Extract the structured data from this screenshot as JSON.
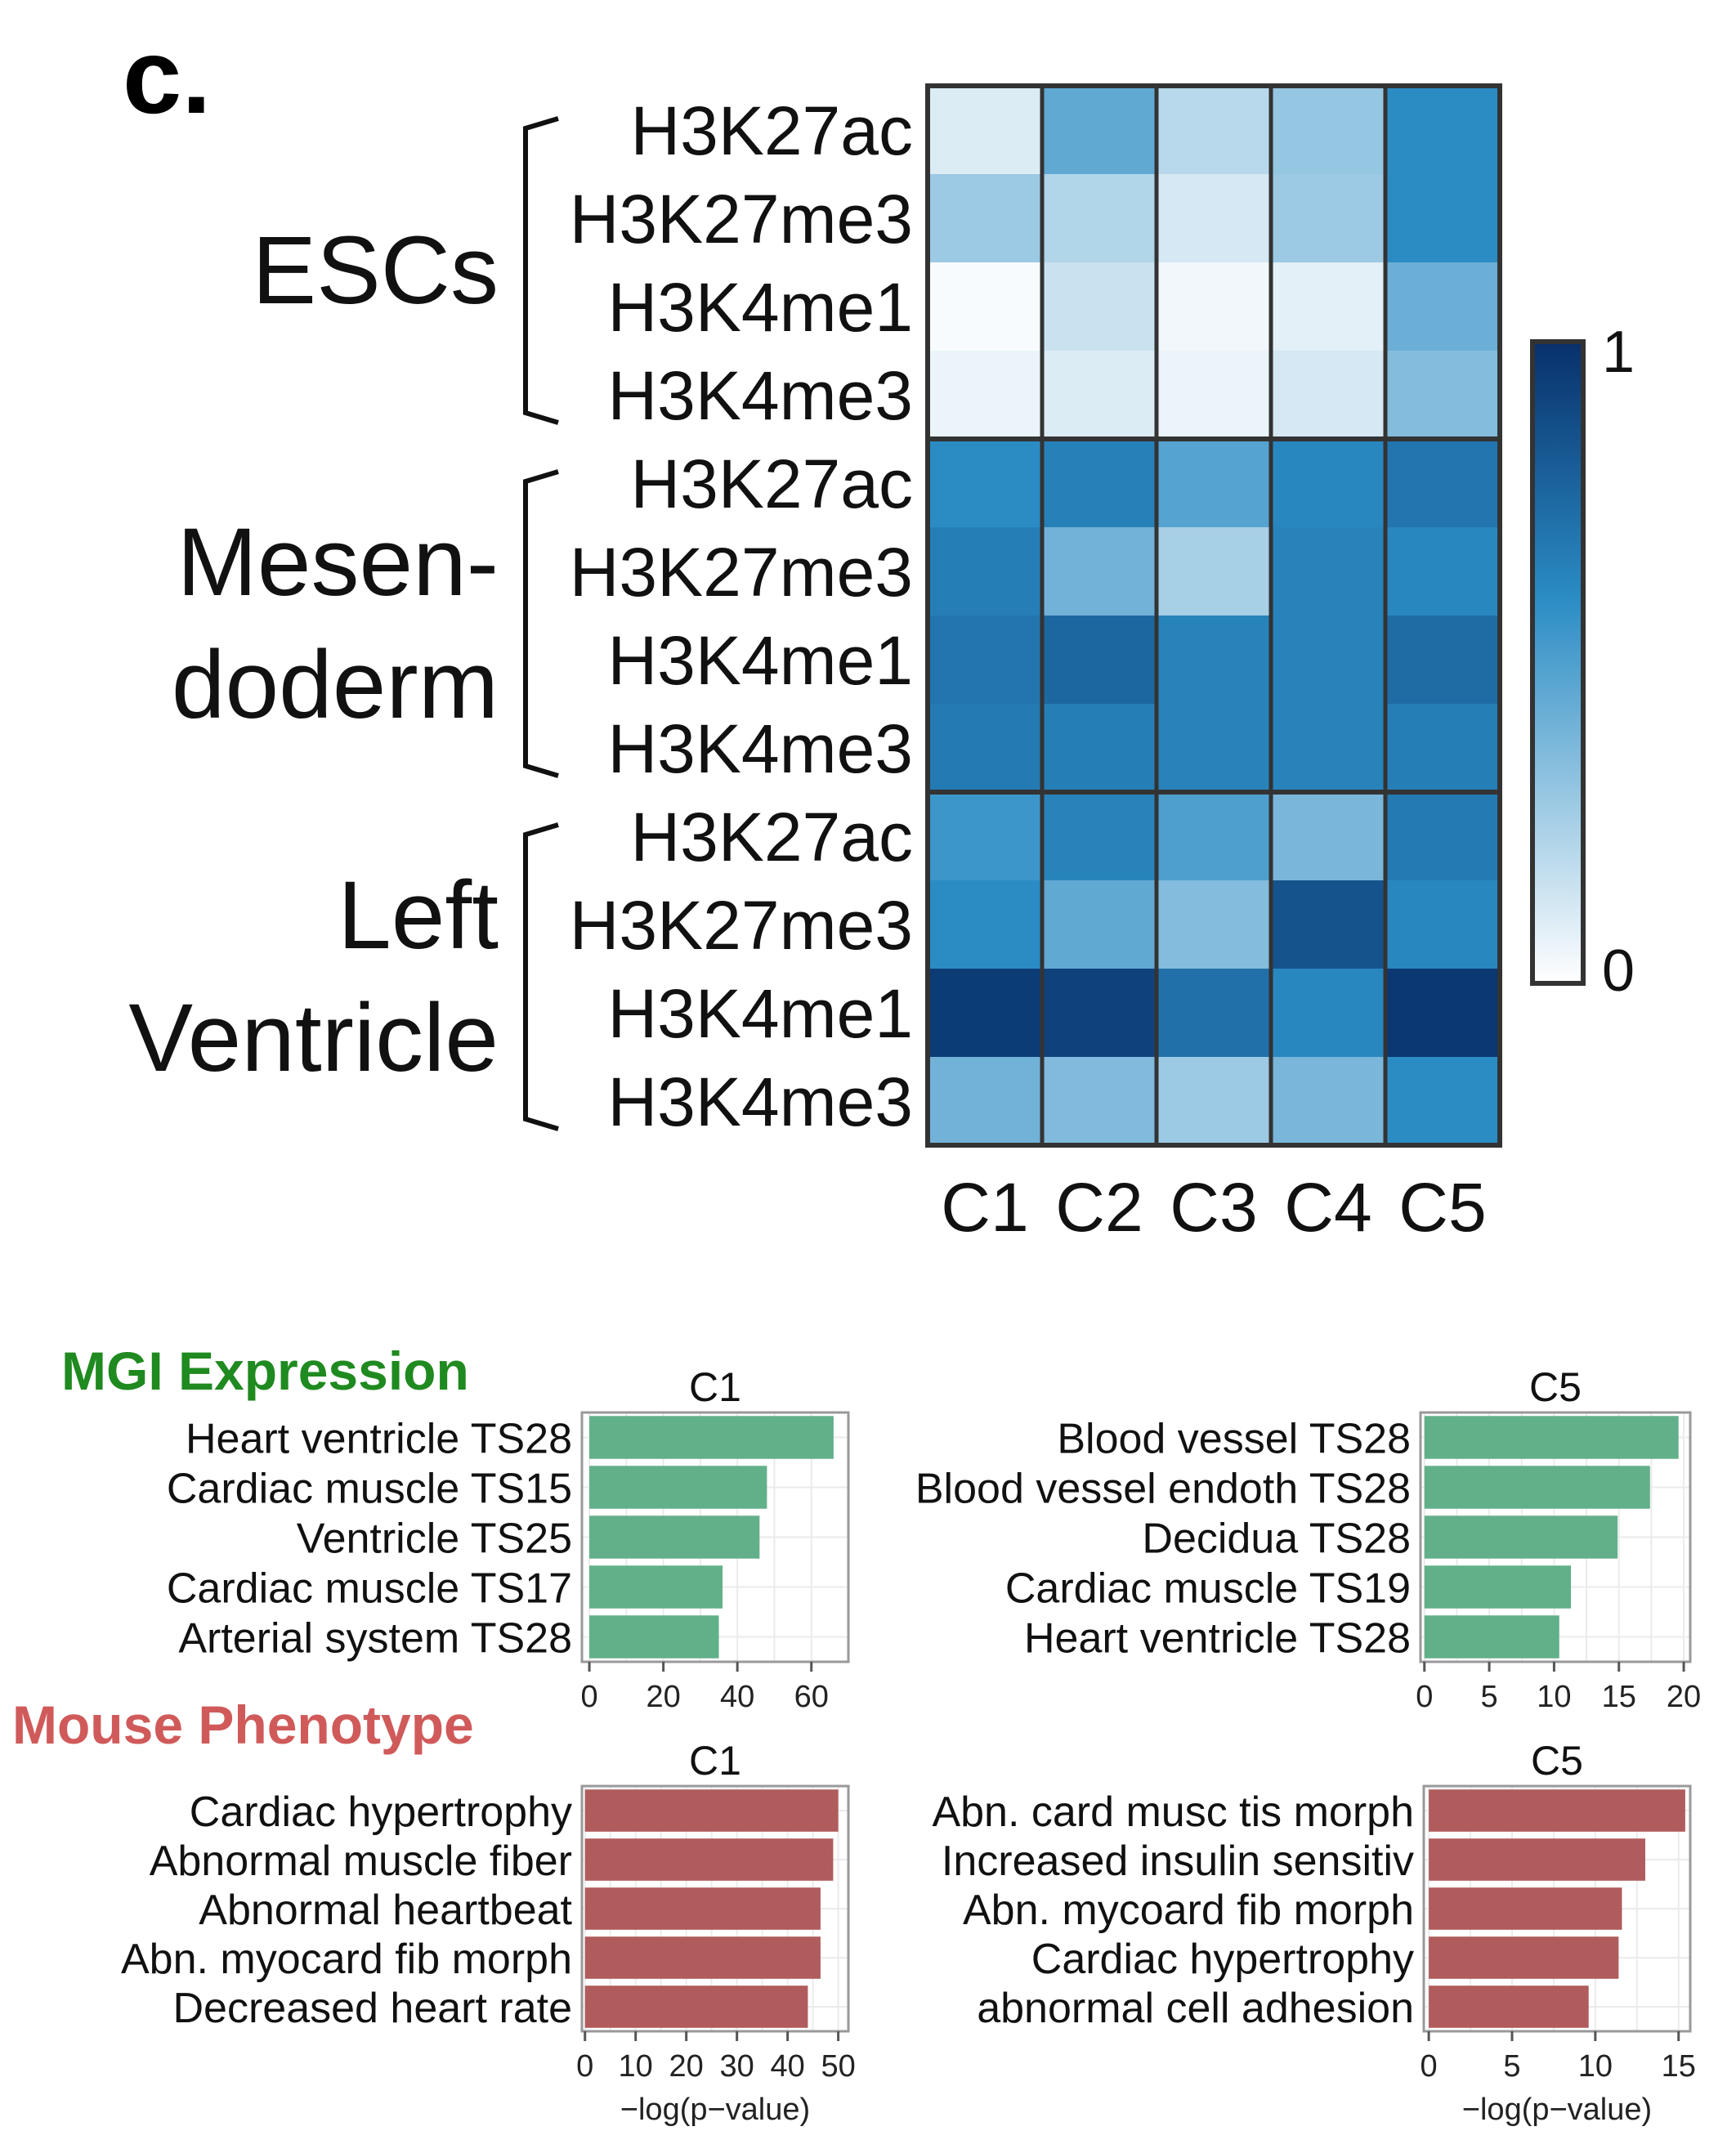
{
  "panel_label": "c.",
  "chart_data": [
    {
      "type": "heatmap",
      "columns": [
        "C1",
        "C2",
        "C3",
        "C4",
        "C5"
      ],
      "groups": [
        {
          "name_lines": [
            "ESCs"
          ],
          "rows": [
            "H3K27ac",
            "H3K27me3",
            "H3K4me1",
            "H3K4me3"
          ]
        },
        {
          "name_lines": [
            "Mesen-",
            "doderm"
          ],
          "rows": [
            "H3K27ac",
            "H3K27me3",
            "H3K4me1",
            "H3K4me3"
          ]
        },
        {
          "name_lines": [
            "Left",
            "Ventricle"
          ],
          "rows": [
            "H3K27ac",
            "H3K27me3",
            "H3K4me1",
            "H3K4me3"
          ]
        }
      ],
      "values": [
        [
          0.1,
          0.45,
          0.2,
          0.3,
          0.6
        ],
        [
          0.28,
          0.22,
          0.12,
          0.28,
          0.6
        ],
        [
          0.02,
          0.15,
          0.04,
          0.08,
          0.42
        ],
        [
          0.06,
          0.1,
          0.06,
          0.12,
          0.35
        ],
        [
          0.6,
          0.65,
          0.48,
          0.62,
          0.7
        ],
        [
          0.66,
          0.4,
          0.25,
          0.64,
          0.62
        ],
        [
          0.7,
          0.76,
          0.64,
          0.64,
          0.74
        ],
        [
          0.68,
          0.66,
          0.64,
          0.64,
          0.66
        ],
        [
          0.55,
          0.64,
          0.5,
          0.38,
          0.68
        ],
        [
          0.6,
          0.45,
          0.35,
          0.85,
          0.62
        ],
        [
          0.95,
          0.92,
          0.72,
          0.62,
          0.97
        ],
        [
          0.4,
          0.36,
          0.28,
          0.38,
          0.6
        ]
      ],
      "colorbar": {
        "min_label": "0",
        "max_label": "1",
        "min": 0,
        "max": 1,
        "low_color": "#ffffff",
        "mid_color": "#2b8cc4",
        "high_color": "#08306b"
      }
    },
    {
      "type": "bar",
      "orientation": "horizontal",
      "section_title": "MGI Expression",
      "section_color": "#1f8a1f",
      "title": "C1",
      "categories": [
        "Heart ventricle TS28",
        "Cardiac muscle TS15",
        "Ventricle TS25",
        "Cardiac muscle TS17",
        "Arterial system TS28"
      ],
      "values": [
        66,
        48,
        46,
        36,
        35
      ],
      "xlim": [
        -2,
        70
      ],
      "xticks": [
        "0",
        "20",
        "40",
        "60"
      ],
      "xlabel": "",
      "bar_color": "#62b08a"
    },
    {
      "type": "bar",
      "orientation": "horizontal",
      "title": "C5",
      "categories": [
        "Blood vessel TS28",
        "Blood vessel endoth TS28",
        "Decidua TS28",
        "Cardiac muscle TS19",
        "Heart ventricle TS28"
      ],
      "values": [
        19.6,
        17.4,
        14.9,
        11.3,
        10.4
      ],
      "xlim": [
        -0.3,
        20.5
      ],
      "xticks": [
        "0",
        "5",
        "10",
        "15",
        "20"
      ],
      "xlabel": "",
      "bar_color": "#62b08a"
    },
    {
      "type": "bar",
      "orientation": "horizontal",
      "section_title": "Mouse Phenotype",
      "section_color": "#d05a5a",
      "title": "C1",
      "categories": [
        "Cardiac hypertrophy",
        "Abnormal muscle fiber",
        "Abnormal heartbeat",
        "Abn. myocard fib morph",
        "Decreased heart rate"
      ],
      "values": [
        50,
        49,
        46.5,
        46.5,
        44
      ],
      "xlim": [
        -0.6,
        52
      ],
      "xticks": [
        "0",
        "10",
        "20",
        "30",
        "40",
        "50"
      ],
      "xlabel": "−log(p−value)",
      "bar_color": "#b05c5c"
    },
    {
      "type": "bar",
      "orientation": "horizontal",
      "title": "C5",
      "categories": [
        "Abn. card musc tis morph",
        "Increased insulin sensitiv",
        "Abn. mycoard fib morph",
        "Cardiac hypertrophy",
        "abnormal cell adhesion"
      ],
      "values": [
        15.4,
        13.0,
        11.6,
        11.4,
        9.6
      ],
      "xlim": [
        -0.3,
        15.7
      ],
      "xticks": [
        "0",
        "5",
        "10",
        "15"
      ],
      "xlabel": "−log(p−value)",
      "bar_color": "#b05c5c"
    }
  ]
}
